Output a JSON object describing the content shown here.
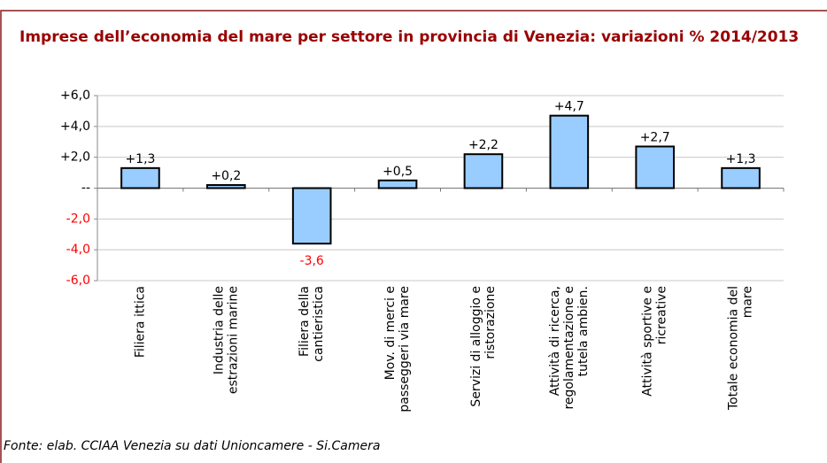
{
  "chart_data": {
    "type": "bar",
    "title": "Imprese dell’economia del mare per settore in provincia di Venezia: variazioni % 2014/2013",
    "categories": [
      "Filiera ittica",
      "Industria delle\nestrazioni marine",
      "Filiera della\ncantieristica",
      "Mov. di merci e\npasseggeri via mare",
      "Servizi di alloggio e\nristorazione",
      "Attività di ricerca,\nregolamentazione e\ntutela ambien.",
      "Attività sportive e\nricreative",
      "Totale economia del\nmare"
    ],
    "values": [
      1.3,
      0.2,
      -3.6,
      0.5,
      2.2,
      4.7,
      2.7,
      1.3
    ],
    "value_labels": [
      "+1,3",
      "+0,2",
      "-3,6",
      "+0,5",
      "+2,2",
      "+4,7",
      "+2,7",
      "+1,3"
    ],
    "color": "#99ccff",
    "negative_color": "#ff0000",
    "ylim": [
      -6,
      6
    ],
    "yticks": [
      {
        "value": 6,
        "label": "+6,0"
      },
      {
        "value": 4,
        "label": "+4,0"
      },
      {
        "value": 2,
        "label": "+2,0"
      },
      {
        "value": 0,
        "label": "--"
      },
      {
        "value": -2,
        "label": "-2,0"
      },
      {
        "value": -4,
        "label": "-4,0"
      },
      {
        "value": -6,
        "label": "-6,0"
      }
    ],
    "grid": true,
    "source": "Fonte: elab. CCIAA Venezia su dati Unioncamere - Si.Camera"
  }
}
